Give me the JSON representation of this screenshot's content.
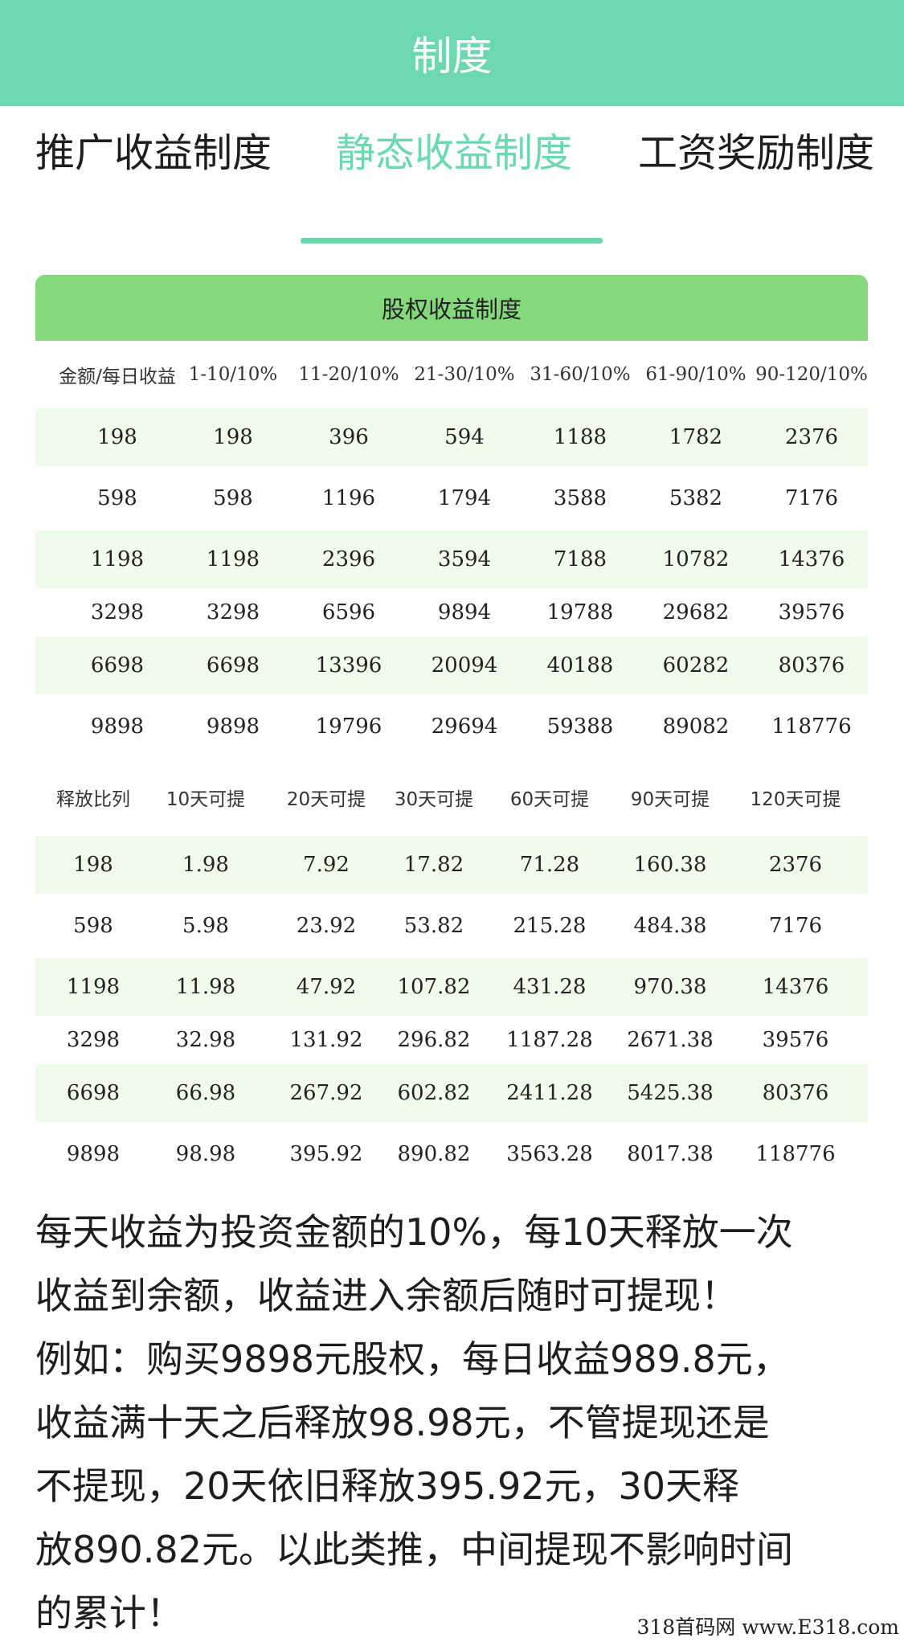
{
  "header": {
    "title": "制度"
  },
  "tabs": [
    {
      "label": "推广收益制度"
    },
    {
      "label": "静态收益制度"
    },
    {
      "label": "工资奖励制度"
    }
  ],
  "table": {
    "title": "股权收益制度",
    "section1": {
      "headers": [
        "金额/每日收益",
        "1-10/10%",
        "11-20/10%",
        "21-30/10%",
        "31-60/10%",
        "61-90/10%",
        "90-120/10%"
      ],
      "rows": [
        [
          "198",
          "198",
          "396",
          "594",
          "1188",
          "1782",
          "2376"
        ],
        [
          "598",
          "598",
          "1196",
          "1794",
          "3588",
          "5382",
          "7176"
        ],
        [
          "1198",
          "1198",
          "2396",
          "3594",
          "7188",
          "10782",
          "14376"
        ],
        [
          "3298",
          "3298",
          "6596",
          "9894",
          "19788",
          "29682",
          "39576"
        ],
        [
          "6698",
          "6698",
          "13396",
          "20094",
          "40188",
          "60282",
          "80376"
        ],
        [
          "9898",
          "9898",
          "19796",
          "29694",
          "59388",
          "89082",
          "118776"
        ]
      ]
    },
    "section2": {
      "headers": [
        "释放比列",
        "10天可提",
        "20天可提",
        "30天可提",
        "60天可提",
        "90天可提",
        "120天可提"
      ],
      "rows": [
        [
          "198",
          "1.98",
          "7.92",
          "17.82",
          "71.28",
          "160.38",
          "2376"
        ],
        [
          "598",
          "5.98",
          "23.92",
          "53.82",
          "215.28",
          "484.38",
          "7176"
        ],
        [
          "1198",
          "11.98",
          "47.92",
          "107.82",
          "431.28",
          "970.38",
          "14376"
        ],
        [
          "3298",
          "32.98",
          "131.92",
          "296.82",
          "1187.28",
          "2671.38",
          "39576"
        ],
        [
          "6698",
          "66.98",
          "267.92",
          "602.82",
          "2411.28",
          "5425.38",
          "80376"
        ],
        [
          "9898",
          "98.98",
          "395.92",
          "890.82",
          "3563.28",
          "8017.38",
          "118776"
        ]
      ]
    }
  },
  "description": {
    "lines": [
      "每天收益为投资金额的10%，每10天释放一次",
      "收益到余额，收益进入余额后随时可提现！",
      "例如：购买9898元股权，每日收益989.8元，",
      "收益满十天之后释放98.98元，不管提现还是",
      "不提现，20天依旧释放395.92元，30天释",
      "放890.82元。以此类推，中间提现不影响时间",
      "的累计！"
    ]
  },
  "watermark": "318首码网 www.E318.com"
}
